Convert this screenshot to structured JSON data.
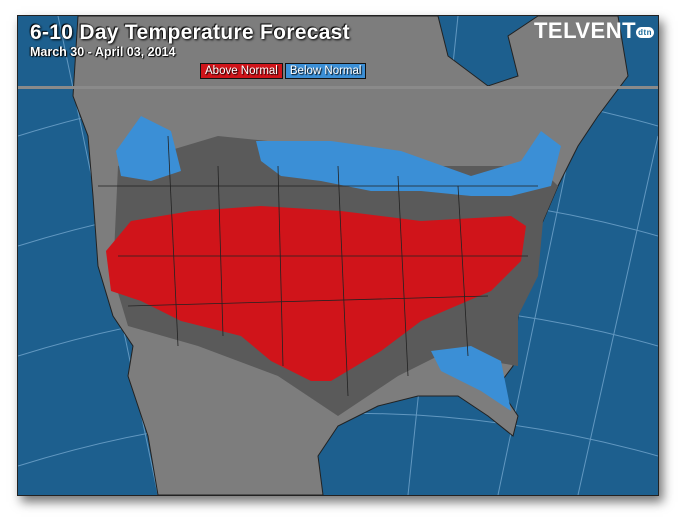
{
  "header": {
    "title": "6-10 Day Temperature Forecast",
    "date_range": "March 30 - April 03, 2014",
    "brand": "TELVENT",
    "brand_badge": "dtn"
  },
  "legend": {
    "items": [
      {
        "label": "Above Normal",
        "color": "#d0141a"
      },
      {
        "label": "Below Normal",
        "color": "#3b8fd6"
      }
    ]
  },
  "colors": {
    "ocean": "#1d5f8e",
    "land": "#7d7d7d",
    "near_normal": "#5a5a5a",
    "above_normal": "#d0141a",
    "below_normal": "#3b8fd6"
  }
}
